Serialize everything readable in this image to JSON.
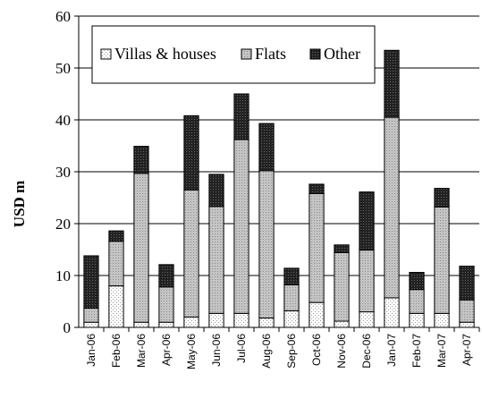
{
  "chart_data": {
    "type": "bar",
    "stacked": true,
    "ylabel": "USD m",
    "xlabel": "",
    "ylim": [
      0,
      60
    ],
    "yticks": [
      0,
      10,
      20,
      30,
      40,
      50,
      60
    ],
    "grid": "horizontal",
    "legend_position": "top-left",
    "categories": [
      "Jan-06",
      "Feb-06",
      "Mar-06",
      "Apr-06",
      "May-06",
      "Jun-06",
      "Jul-06",
      "Aug-06",
      "Sep-06",
      "Oct-06",
      "Nov-06",
      "Dec-06",
      "Jan-07",
      "Feb-07",
      "Mar-07",
      "Apr-07"
    ],
    "series": [
      {
        "name": "Villas & houses",
        "color": "#ffffff",
        "pattern": "dots-light",
        "values": [
          1.0,
          8.0,
          1.0,
          1.0,
          2.0,
          2.7,
          2.7,
          1.8,
          3.2,
          4.8,
          1.2,
          3.0,
          5.7,
          2.7,
          2.7,
          1.0
        ]
      },
      {
        "name": "Flats",
        "color": "#bfbfbf",
        "pattern": "dots-medium",
        "values": [
          2.7,
          8.6,
          28.7,
          6.8,
          24.5,
          20.6,
          33.5,
          28.4,
          5.0,
          21.0,
          13.2,
          11.9,
          34.8,
          4.6,
          20.5,
          4.3
        ]
      },
      {
        "name": "Other",
        "color": "#262626",
        "pattern": "dots-dark",
        "values": [
          10.1,
          2.0,
          5.2,
          4.3,
          14.3,
          6.2,
          8.8,
          9.1,
          3.2,
          1.8,
          1.5,
          11.2,
          12.9,
          3.3,
          3.6,
          6.5
        ]
      }
    ]
  }
}
